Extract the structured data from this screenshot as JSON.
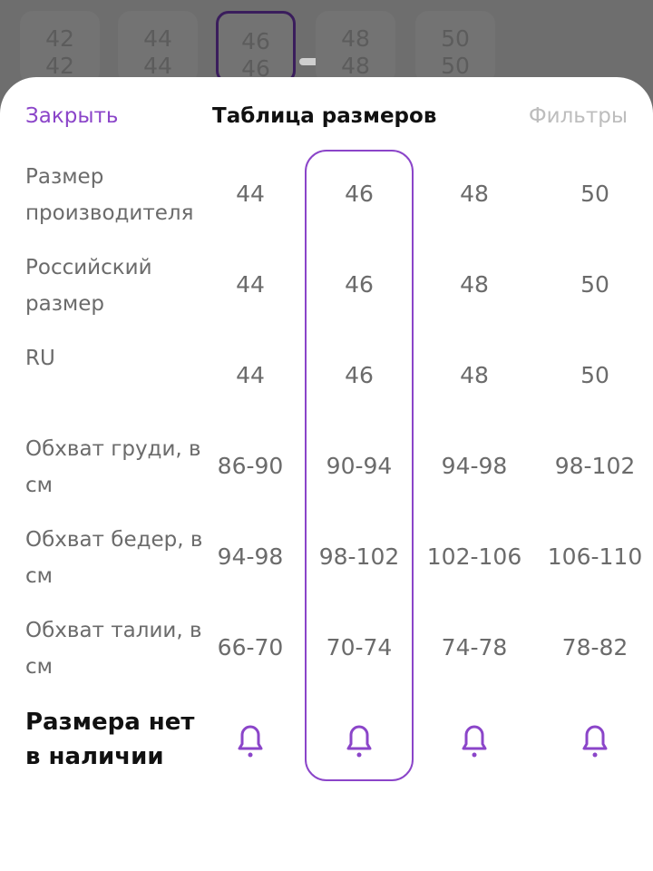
{
  "background_sizes": [
    {
      "top": "42",
      "bottom": "42"
    },
    {
      "top": "44",
      "bottom": "44"
    },
    {
      "top": "46",
      "bottom": "46"
    },
    {
      "top": "48",
      "bottom": "48"
    },
    {
      "top": "50",
      "bottom": "50"
    }
  ],
  "header": {
    "close": "Закрыть",
    "title": "Таблица размеров",
    "filters": "Фильтры"
  },
  "table": {
    "rows": [
      {
        "label": "Размер производителя",
        "values": [
          "44",
          "46",
          "48",
          "50"
        ]
      },
      {
        "label": "Российский размер",
        "values": [
          "44",
          "46",
          "48",
          "50"
        ]
      },
      {
        "label": "RU",
        "values": [
          "44",
          "46",
          "48",
          "50"
        ]
      },
      {
        "label": "Обхват груди, в см",
        "values": [
          "86-90",
          "90-94",
          "94-98",
          "98-102"
        ]
      },
      {
        "label": "Обхват бедер, в см",
        "values": [
          "94-98",
          "98-102",
          "102-106",
          "106-110"
        ]
      },
      {
        "label": "Обхват талии, в см",
        "values": [
          "66-70",
          "70-74",
          "74-78",
          "78-82"
        ]
      }
    ]
  },
  "footer": {
    "label": "Размера нет в наличии"
  }
}
